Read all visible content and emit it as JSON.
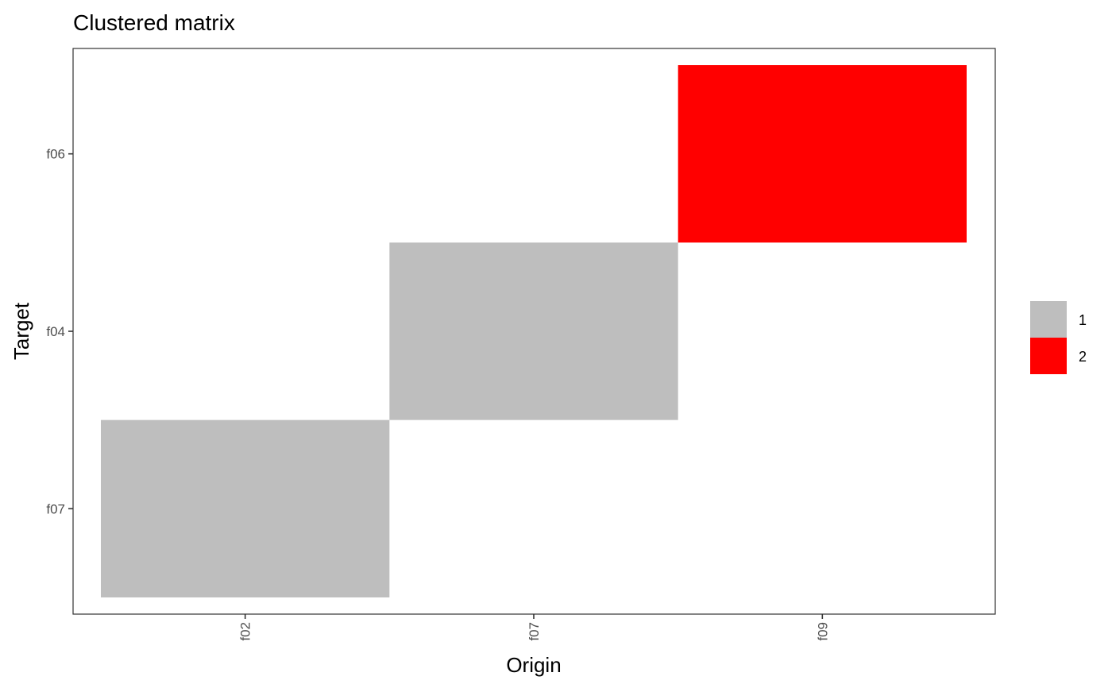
{
  "chart_data": {
    "type": "heatmap",
    "title": "Clustered matrix",
    "xlabel": "Origin",
    "ylabel": "Target",
    "x_categories": [
      "f02",
      "f07",
      "f09"
    ],
    "y_categories": [
      "f06",
      "f04",
      "f07"
    ],
    "cells": [
      {
        "x": "f02",
        "y": "f07",
        "value": "1"
      },
      {
        "x": "f07",
        "y": "f04",
        "value": "1"
      },
      {
        "x": "f09",
        "y": "f06",
        "value": "2"
      }
    ],
    "legend": [
      {
        "label": "1",
        "color": "#bebebe"
      },
      {
        "label": "2",
        "color": "#ff0000"
      }
    ],
    "legend_position": "right",
    "grid": false
  }
}
